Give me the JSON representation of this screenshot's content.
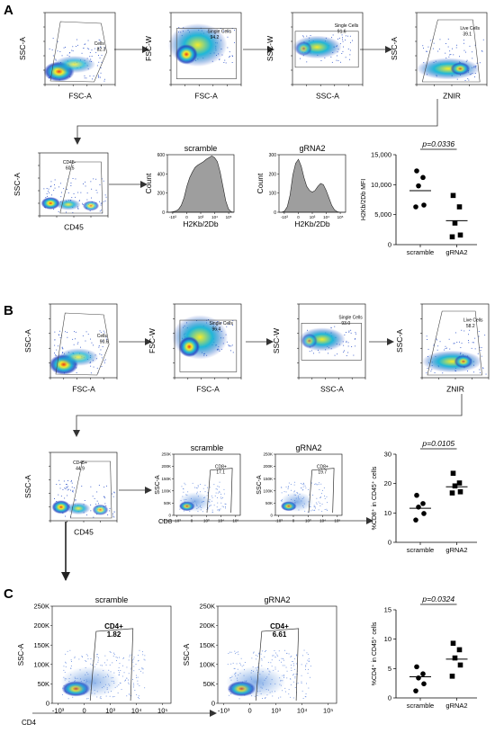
{
  "panels": {
    "A": {
      "label": "A",
      "gating": [
        {
          "x": "FSC-A",
          "y": "SSC-A",
          "gate": "Cells",
          "value": "82.3"
        },
        {
          "x": "FSC-A",
          "y": "FSC-W",
          "gate": "Single Cells",
          "value": "94.2"
        },
        {
          "x": "SSC-A",
          "y": "SSC-W",
          "gate": "Single Cells",
          "value": "91.6"
        },
        {
          "x": "ZNIR",
          "y": "SSC-A",
          "gate": "Live Cells",
          "value": "39.1"
        },
        {
          "x": "CD45",
          "y": "SSC-A",
          "gate": "CD45-",
          "value": "60.5"
        }
      ],
      "histograms": [
        {
          "title": "scramble",
          "xlabel": "H2Kb/2Db",
          "ylabel": "Count",
          "yticks": [
            "0",
            "200",
            "400",
            "600"
          ]
        },
        {
          "title": "gRNA2",
          "xlabel": "H2Kb/2Db",
          "ylabel": "Count",
          "yticks": [
            "0",
            "100",
            "200",
            "300"
          ]
        }
      ]
    },
    "B": {
      "label": "B",
      "gating": [
        {
          "x": "FSC-A",
          "y": "SSC-A",
          "gate": "Cells",
          "value": "90.6"
        },
        {
          "x": "FSC-A",
          "y": "FSC-W",
          "gate": "Single Cells",
          "value": "96.4"
        },
        {
          "x": "SSC-A",
          "y": "SSC-W",
          "gate": "Single Cells",
          "value": "93.0"
        },
        {
          "x": "ZNIR",
          "y": "SSC-A",
          "gate": "Live Cells",
          "value": "58.2"
        },
        {
          "x": "CD45",
          "y": "SSC-A",
          "gate": "CD45+",
          "value": "44.9"
        },
        {
          "x": "CD8",
          "y": "SSC-A",
          "gate": "CD8+",
          "value": "17.1",
          "title": "scramble"
        },
        {
          "x": "CD8",
          "y": "SSC-A",
          "gate": "CD8+",
          "value": "19.7",
          "title": "gRNA2"
        }
      ]
    },
    "C": {
      "label": "C",
      "gating": [
        {
          "x": "CD4",
          "y": "SSC-A",
          "gate": "CD4+",
          "value": "1.82",
          "title": "scramble"
        },
        {
          "x": "CD4",
          "y": "SSC-A",
          "gate": "CD4+",
          "value": "6.61",
          "title": "gRNA2"
        }
      ]
    }
  },
  "ticks": {
    "fsc": [
      "0",
      "50K",
      "100K",
      "150K",
      "200K",
      "250K"
    ],
    "y250": [
      "0",
      "50K",
      "100K",
      "150K",
      "200K",
      "250K"
    ],
    "log": [
      "-10³",
      "0",
      "10³",
      "10⁴",
      "10⁵"
    ],
    "log_hist": [
      "-10³",
      "0",
      "10³",
      "10⁴",
      "10⁵"
    ]
  },
  "chart_data": [
    {
      "type": "scatter",
      "panel": "A",
      "categories": [
        "scramble",
        "gRNA2"
      ],
      "ylabel": "H2Kb/2Db MFI",
      "ylim": [
        0,
        15000
      ],
      "yticks": [
        "0",
        "5,000",
        "10,000",
        "15,000"
      ],
      "p_value": "p=0.0336",
      "series": [
        {
          "name": "scramble",
          "marker": "circle",
          "values": [
            12300,
            11200,
            9800,
            6600,
            6300
          ],
          "mean": 9000
        },
        {
          "name": "gRNA2",
          "marker": "square",
          "values": [
            8200,
            6300,
            3600,
            1600,
            1300
          ],
          "mean": 4000
        }
      ]
    },
    {
      "type": "scatter",
      "panel": "B",
      "categories": [
        "scramble",
        "gRNA2"
      ],
      "ylabel": "%CD8⁺ in CD45⁺ cells",
      "ylim": [
        0,
        30
      ],
      "yticks": [
        "0",
        "10",
        "20",
        "30"
      ],
      "p_value": "p=0.0105",
      "series": [
        {
          "name": "scramble",
          "marker": "circle",
          "values": [
            16.0,
            13.2,
            12.0,
            9.8,
            7.6
          ],
          "mean": 11.6
        },
        {
          "name": "gRNA2",
          "marker": "square",
          "values": [
            23.5,
            20.2,
            19.2,
            17.2,
            16.8
          ],
          "mean": 18.9
        }
      ]
    },
    {
      "type": "scatter",
      "panel": "C",
      "categories": [
        "scramble",
        "gRNA2"
      ],
      "ylabel": "%CD4⁺ in CD45⁺ cells",
      "ylim": [
        0,
        15
      ],
      "yticks": [
        "0",
        "5",
        "10",
        "15"
      ],
      "p_value": "p=0.0324",
      "series": [
        {
          "name": "scramble",
          "marker": "circle",
          "values": [
            5.3,
            4.1,
            3.4,
            2.4,
            1.2
          ],
          "mean": 3.6
        },
        {
          "name": "gRNA2",
          "marker": "square",
          "values": [
            9.3,
            8.2,
            6.8,
            5.6,
            3.7
          ],
          "mean": 6.6
        }
      ]
    }
  ],
  "colors": {
    "density_low": "#1f3fbf",
    "density_mid": "#1fb7d8",
    "density_high": "#f6ec2a",
    "density_peak": "#e8391c",
    "histogram_fill": "#9e9e9e",
    "axis": "#000000"
  }
}
